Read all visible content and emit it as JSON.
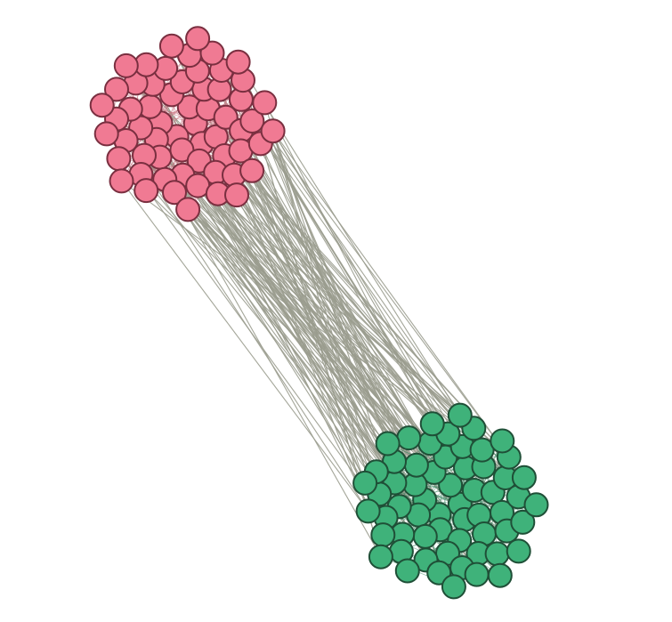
{
  "diagram": {
    "type": "network",
    "colors": {
      "background": "#ffffff",
      "edge": "#9a9c8e",
      "intra_edge_community_a": "#c9727e",
      "intra_edge_community_b": "#3f8a66"
    },
    "communities": [
      {
        "id": "a",
        "node_count": 60,
        "fill": "#f07a93",
        "stroke": "#7a2f40"
      },
      {
        "id": "b",
        "node_count": 60,
        "fill": "#3fb27a",
        "stroke": "#1f4f37"
      }
    ],
    "inter_community_edges": 130
  }
}
